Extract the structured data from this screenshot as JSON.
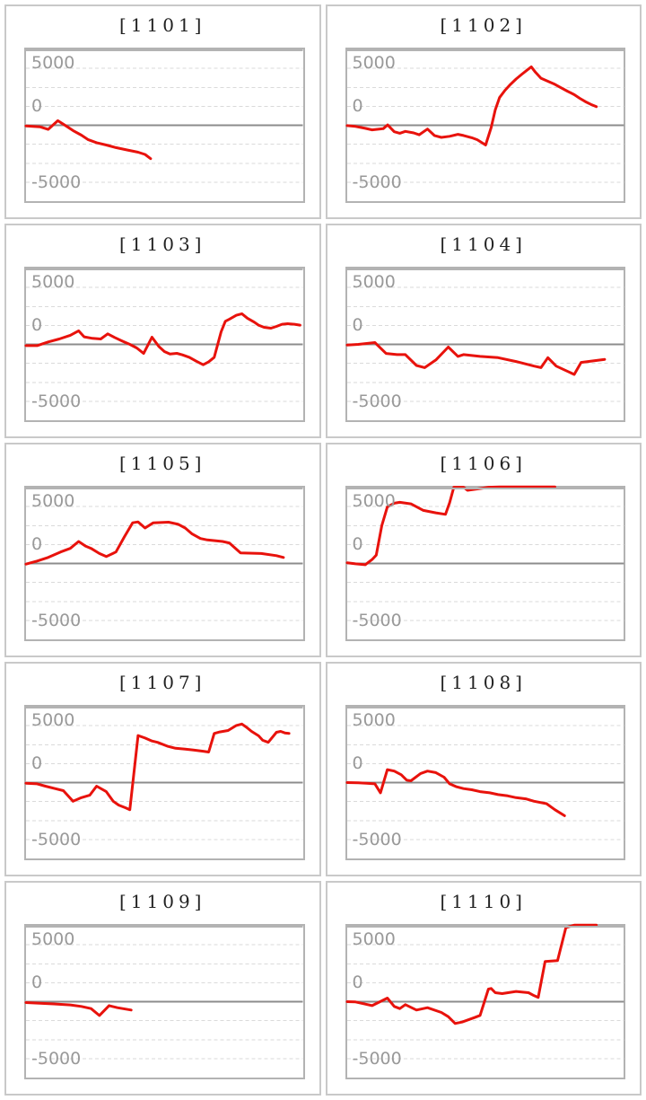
{
  "palette": {
    "line_red": "#e8120c",
    "gridline": "#dadada",
    "zero_line": "#8c8c8c",
    "plot_border": "#b3b3b3",
    "cell_border": "#c9c9c9",
    "axis_label": "#999999",
    "title_text": "#222222"
  },
  "chart_data": [
    {
      "type": "line",
      "title": "[1101]",
      "color": "#e8120c",
      "ylim": [
        -10000,
        10000
      ],
      "grid_interval": 2500,
      "x_range": [
        0,
        1
      ],
      "axis_labels": [
        "5000",
        "0",
        "-5000"
      ],
      "points": [
        [
          0,
          -100
        ],
        [
          0.05,
          -200
        ],
        [
          0.08,
          -550
        ],
        [
          0.115,
          600
        ],
        [
          0.145,
          -100
        ],
        [
          0.17,
          -700
        ],
        [
          0.2,
          -1300
        ],
        [
          0.225,
          -1900
        ],
        [
          0.255,
          -2300
        ],
        [
          0.29,
          -2600
        ],
        [
          0.325,
          -2950
        ],
        [
          0.365,
          -3250
        ],
        [
          0.405,
          -3550
        ],
        [
          0.43,
          -3850
        ],
        [
          0.45,
          -4400
        ]
      ]
    },
    {
      "type": "line",
      "title": "[1102]",
      "color": "#e8120c",
      "ylim": [
        -10000,
        10000
      ],
      "grid_interval": 2500,
      "x_range": [
        0,
        1
      ],
      "axis_labels": [
        "5000",
        "0",
        "-5000"
      ],
      "points": [
        [
          0,
          -50
        ],
        [
          0.03,
          -150
        ],
        [
          0.065,
          -400
        ],
        [
          0.09,
          -600
        ],
        [
          0.13,
          -450
        ],
        [
          0.146,
          50
        ],
        [
          0.17,
          -850
        ],
        [
          0.19,
          -1050
        ],
        [
          0.21,
          -800
        ],
        [
          0.24,
          -1000
        ],
        [
          0.26,
          -1250
        ],
        [
          0.29,
          -500
        ],
        [
          0.315,
          -1350
        ],
        [
          0.34,
          -1600
        ],
        [
          0.37,
          -1450
        ],
        [
          0.4,
          -1200
        ],
        [
          0.42,
          -1350
        ],
        [
          0.45,
          -1650
        ],
        [
          0.47,
          -1900
        ],
        [
          0.5,
          -2600
        ],
        [
          0.52,
          -300
        ],
        [
          0.535,
          2050
        ],
        [
          0.55,
          3650
        ],
        [
          0.57,
          4600
        ],
        [
          0.59,
          5400
        ],
        [
          0.61,
          6100
        ],
        [
          0.63,
          6700
        ],
        [
          0.65,
          7270
        ],
        [
          0.665,
          7700
        ],
        [
          0.68,
          7000
        ],
        [
          0.7,
          6200
        ],
        [
          0.725,
          5800
        ],
        [
          0.75,
          5400
        ],
        [
          0.77,
          5000
        ],
        [
          0.795,
          4500
        ],
        [
          0.82,
          4030
        ],
        [
          0.84,
          3550
        ],
        [
          0.86,
          3120
        ],
        [
          0.88,
          2760
        ],
        [
          0.9,
          2450
        ]
      ]
    },
    {
      "type": "line",
      "title": "[1103]",
      "color": "#e8120c",
      "ylim": [
        -10000,
        10000
      ],
      "grid_interval": 2500,
      "x_range": [
        0,
        1
      ],
      "axis_labels": [
        "5000",
        "0",
        "-5000"
      ],
      "points": [
        [
          0,
          -160
        ],
        [
          0.04,
          -160
        ],
        [
          0.08,
          320
        ],
        [
          0.12,
          715
        ],
        [
          0.16,
          1190
        ],
        [
          0.19,
          1790
        ],
        [
          0.21,
          990
        ],
        [
          0.24,
          790
        ],
        [
          0.27,
          715
        ],
        [
          0.295,
          1390
        ],
        [
          0.32,
          910
        ],
        [
          0.35,
          400
        ],
        [
          0.375,
          0
        ],
        [
          0.4,
          -475
        ],
        [
          0.425,
          -1190
        ],
        [
          0.455,
          950
        ],
        [
          0.48,
          -280
        ],
        [
          0.5,
          -950
        ],
        [
          0.52,
          -1280
        ],
        [
          0.545,
          -1185
        ],
        [
          0.565,
          -1385
        ],
        [
          0.59,
          -1700
        ],
        [
          0.615,
          -2210
        ],
        [
          0.64,
          -2690
        ],
        [
          0.66,
          -2290
        ],
        [
          0.68,
          -1700
        ],
        [
          0.705,
          1660
        ],
        [
          0.72,
          3040
        ],
        [
          0.735,
          3320
        ],
        [
          0.76,
          3830
        ],
        [
          0.78,
          4030
        ],
        [
          0.8,
          3440
        ],
        [
          0.825,
          2920
        ],
        [
          0.84,
          2530
        ],
        [
          0.86,
          2250
        ],
        [
          0.885,
          2130
        ],
        [
          0.905,
          2370
        ],
        [
          0.925,
          2650
        ],
        [
          0.945,
          2725
        ],
        [
          0.97,
          2650
        ],
        [
          0.99,
          2530
        ]
      ]
    },
    {
      "type": "line",
      "title": "[1104]",
      "color": "#e8120c",
      "ylim": [
        -10000,
        10000
      ],
      "grid_interval": 2500,
      "x_range": [
        0,
        1
      ],
      "axis_labels": [
        "5000",
        "0",
        "-5000"
      ],
      "points": [
        [
          0,
          -80
        ],
        [
          0.04,
          0
        ],
        [
          0.1,
          240
        ],
        [
          0.14,
          -1190
        ],
        [
          0.18,
          -1350
        ],
        [
          0.21,
          -1350
        ],
        [
          0.25,
          -2780
        ],
        [
          0.28,
          -3060
        ],
        [
          0.32,
          -2060
        ],
        [
          0.365,
          -360
        ],
        [
          0.4,
          -1590
        ],
        [
          0.42,
          -1350
        ],
        [
          0.48,
          -1590
        ],
        [
          0.545,
          -1750
        ],
        [
          0.61,
          -2260
        ],
        [
          0.675,
          -2860
        ],
        [
          0.7,
          -3060
        ],
        [
          0.725,
          -1750
        ],
        [
          0.755,
          -2860
        ],
        [
          0.79,
          -3450
        ],
        [
          0.82,
          -3970
        ],
        [
          0.845,
          -2380
        ],
        [
          0.87,
          -2260
        ],
        [
          0.93,
          -1980
        ]
      ]
    },
    {
      "type": "line",
      "title": "[1105]",
      "color": "#e8120c",
      "ylim": [
        -10000,
        10000
      ],
      "grid_interval": 2500,
      "x_range": [
        0,
        1
      ],
      "axis_labels": [
        "5000",
        "0",
        "-5000"
      ],
      "points": [
        [
          0,
          -80
        ],
        [
          0.04,
          320
        ],
        [
          0.08,
          790
        ],
        [
          0.125,
          1510
        ],
        [
          0.16,
          1985
        ],
        [
          0.19,
          2900
        ],
        [
          0.215,
          2300
        ],
        [
          0.235,
          1985
        ],
        [
          0.265,
          1310
        ],
        [
          0.29,
          915
        ],
        [
          0.325,
          1510
        ],
        [
          0.355,
          3490
        ],
        [
          0.385,
          5360
        ],
        [
          0.405,
          5480
        ],
        [
          0.43,
          4680
        ],
        [
          0.46,
          5360
        ],
        [
          0.515,
          5440
        ],
        [
          0.55,
          5160
        ],
        [
          0.575,
          4680
        ],
        [
          0.6,
          3890
        ],
        [
          0.63,
          3290
        ],
        [
          0.655,
          3100
        ],
        [
          0.71,
          2900
        ],
        [
          0.735,
          2700
        ],
        [
          0.775,
          1390
        ],
        [
          0.82,
          1350
        ],
        [
          0.85,
          1310
        ],
        [
          0.905,
          1030
        ],
        [
          0.93,
          790
        ]
      ]
    },
    {
      "type": "line",
      "title": "[1106]",
      "color": "#e8120c",
      "ylim": [
        -10000,
        10000
      ],
      "grid_interval": 2500,
      "x_range": [
        0,
        1
      ],
      "axis_labels": [
        "5000",
        "0",
        "-5000"
      ],
      "points": [
        [
          0,
          100
        ],
        [
          0.03,
          -50
        ],
        [
          0.065,
          -160
        ],
        [
          0.09,
          515
        ],
        [
          0.105,
          1100
        ],
        [
          0.125,
          5000
        ],
        [
          0.145,
          7465
        ],
        [
          0.17,
          7940
        ],
        [
          0.19,
          8060
        ],
        [
          0.23,
          7860
        ],
        [
          0.275,
          6990
        ],
        [
          0.32,
          6670
        ],
        [
          0.355,
          6470
        ],
        [
          0.37,
          8000
        ],
        [
          0.385,
          10050
        ],
        [
          0.42,
          10050
        ],
        [
          0.435,
          9650
        ],
        [
          0.49,
          9930
        ],
        [
          0.51,
          10050
        ],
        [
          0.55,
          10080
        ],
        [
          0.75,
          10080
        ]
      ]
    },
    {
      "type": "line",
      "title": "[1107]",
      "color": "#e8120c",
      "ylim": [
        -10000,
        10000
      ],
      "grid_interval": 2500,
      "x_range": [
        0,
        1
      ],
      "axis_labels": [
        "5000",
        "0",
        "-5000"
      ],
      "points": [
        [
          0,
          -80
        ],
        [
          0.04,
          -160
        ],
        [
          0.07,
          -475
        ],
        [
          0.105,
          -790
        ],
        [
          0.135,
          -1070
        ],
        [
          0.17,
          -2460
        ],
        [
          0.2,
          -1985
        ],
        [
          0.23,
          -1670
        ],
        [
          0.255,
          -475
        ],
        [
          0.29,
          -1190
        ],
        [
          0.315,
          -2460
        ],
        [
          0.335,
          -2975
        ],
        [
          0.36,
          -3330
        ],
        [
          0.375,
          -3570
        ],
        [
          0.405,
          6200
        ],
        [
          0.43,
          5870
        ],
        [
          0.455,
          5480
        ],
        [
          0.475,
          5300
        ],
        [
          0.51,
          4800
        ],
        [
          0.54,
          4520
        ],
        [
          0.575,
          4410
        ],
        [
          0.605,
          4290
        ],
        [
          0.64,
          4130
        ],
        [
          0.66,
          4020
        ],
        [
          0.68,
          6475
        ],
        [
          0.7,
          6670
        ],
        [
          0.73,
          6865
        ],
        [
          0.76,
          7530
        ],
        [
          0.78,
          7720
        ],
        [
          0.795,
          7330
        ],
        [
          0.815,
          6745
        ],
        [
          0.84,
          6160
        ],
        [
          0.855,
          5575
        ],
        [
          0.875,
          5300
        ],
        [
          0.905,
          6630
        ],
        [
          0.92,
          6745
        ],
        [
          0.935,
          6550
        ],
        [
          0.95,
          6475
        ]
      ]
    },
    {
      "type": "line",
      "title": "[1108]",
      "color": "#e8120c",
      "ylim": [
        -10000,
        10000
      ],
      "grid_interval": 2500,
      "x_range": [
        0,
        1
      ],
      "axis_labels": [
        "5000",
        "0",
        "-5000"
      ],
      "points": [
        [
          0,
          0
        ],
        [
          0.04,
          -40
        ],
        [
          0.07,
          -80
        ],
        [
          0.1,
          -160
        ],
        [
          0.12,
          -1350
        ],
        [
          0.145,
          1700
        ],
        [
          0.17,
          1510
        ],
        [
          0.195,
          1030
        ],
        [
          0.215,
          320
        ],
        [
          0.23,
          240
        ],
        [
          0.265,
          1190
        ],
        [
          0.29,
          1510
        ],
        [
          0.32,
          1310
        ],
        [
          0.35,
          715
        ],
        [
          0.37,
          -160
        ],
        [
          0.395,
          -555
        ],
        [
          0.42,
          -790
        ],
        [
          0.45,
          -950
        ],
        [
          0.48,
          -1190
        ],
        [
          0.515,
          -1350
        ],
        [
          0.545,
          -1590
        ],
        [
          0.58,
          -1750
        ],
        [
          0.61,
          -1985
        ],
        [
          0.645,
          -2140
        ],
        [
          0.675,
          -2460
        ],
        [
          0.72,
          -2780
        ],
        [
          0.75,
          -3570
        ],
        [
          0.785,
          -4370
        ]
      ]
    },
    {
      "type": "line",
      "title": "[1109]",
      "color": "#e8120c",
      "ylim": [
        -10000,
        10000
      ],
      "grid_interval": 2500,
      "x_range": [
        0,
        1
      ],
      "axis_labels": [
        "5000",
        "0",
        "-5000"
      ],
      "points": [
        [
          0,
          -120
        ],
        [
          0.05,
          -200
        ],
        [
          0.1,
          -300
        ],
        [
          0.16,
          -430
        ],
        [
          0.2,
          -630
        ],
        [
          0.235,
          -910
        ],
        [
          0.265,
          -1825
        ],
        [
          0.3,
          -515
        ],
        [
          0.33,
          -790
        ],
        [
          0.38,
          -1100
        ]
      ]
    },
    {
      "type": "line",
      "title": "[1110]",
      "color": "#e8120c",
      "ylim": [
        -10000,
        10000
      ],
      "grid_interval": 2500,
      "x_range": [
        0,
        1
      ],
      "axis_labels": [
        "5000",
        "0",
        "-5000"
      ],
      "points": [
        [
          0,
          0
        ],
        [
          0.03,
          -40
        ],
        [
          0.065,
          -315
        ],
        [
          0.09,
          -515
        ],
        [
          0.145,
          475
        ],
        [
          0.17,
          -630
        ],
        [
          0.19,
          -910
        ],
        [
          0.21,
          -395
        ],
        [
          0.25,
          -1105
        ],
        [
          0.29,
          -790
        ],
        [
          0.34,
          -1420
        ],
        [
          0.365,
          -1975
        ],
        [
          0.39,
          -2880
        ],
        [
          0.415,
          -2685
        ],
        [
          0.46,
          -2095
        ],
        [
          0.48,
          -1815
        ],
        [
          0.51,
          1660
        ],
        [
          0.52,
          1740
        ],
        [
          0.535,
          1185
        ],
        [
          0.56,
          1065
        ],
        [
          0.61,
          1345
        ],
        [
          0.655,
          1185
        ],
        [
          0.675,
          790
        ],
        [
          0.69,
          555
        ],
        [
          0.715,
          5295
        ],
        [
          0.76,
          5410
        ],
        [
          0.79,
          9760
        ],
        [
          0.82,
          10080
        ],
        [
          0.9,
          10080
        ]
      ]
    }
  ]
}
